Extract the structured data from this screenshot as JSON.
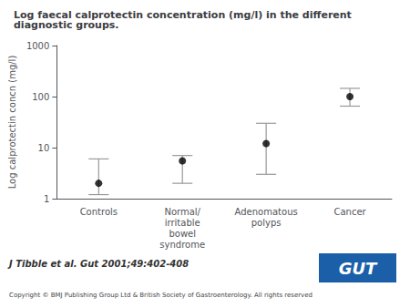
{
  "chart_data": {
    "type": "scatter",
    "title": "Log faecal calprotectin concentration (mg/l) in the different diagnostic groups.",
    "ylabel": "Log calprotectin concn (mg/l)",
    "categories": [
      "Controls",
      "Normal/\nirritable\nbowel\nsyndrome",
      "Adenomatous\npolyps",
      "Cancer"
    ],
    "values": [
      2.0,
      5.5,
      12.0,
      100.0
    ],
    "color": "#000000",
    "error_bars": {
      "lower": [
        1.2,
        2.0,
        3.0,
        65.0
      ],
      "upper": [
        6.0,
        7.0,
        30.0,
        145.0
      ],
      "color": "#999999"
    },
    "log": "y",
    "ylim": [
      1,
      1000
    ],
    "yticks": [
      1,
      10,
      100,
      1000
    ],
    "grid": false,
    "annotations": [
      {
        "text": "J Tibble et al. Gut 2001;49:402-408"
      },
      {
        "text": "Copyright © BMJ Publishing Group Ltd & British Society of Gastroenterology. All rights reserved"
      },
      {
        "text": "GUT",
        "color": "#1a5fa8"
      }
    ]
  }
}
